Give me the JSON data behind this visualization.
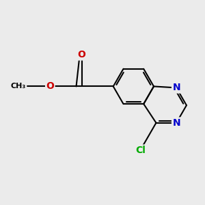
{
  "bg_color": "#ebebeb",
  "bond_color": "#000000",
  "bond_width": 1.5,
  "atom_colors": {
    "C": "#000000",
    "N": "#0000cc",
    "O": "#cc0000",
    "Cl": "#00aa00"
  },
  "font_size": 9,
  "fig_size": [
    3.0,
    3.0
  ],
  "dpi": 100
}
